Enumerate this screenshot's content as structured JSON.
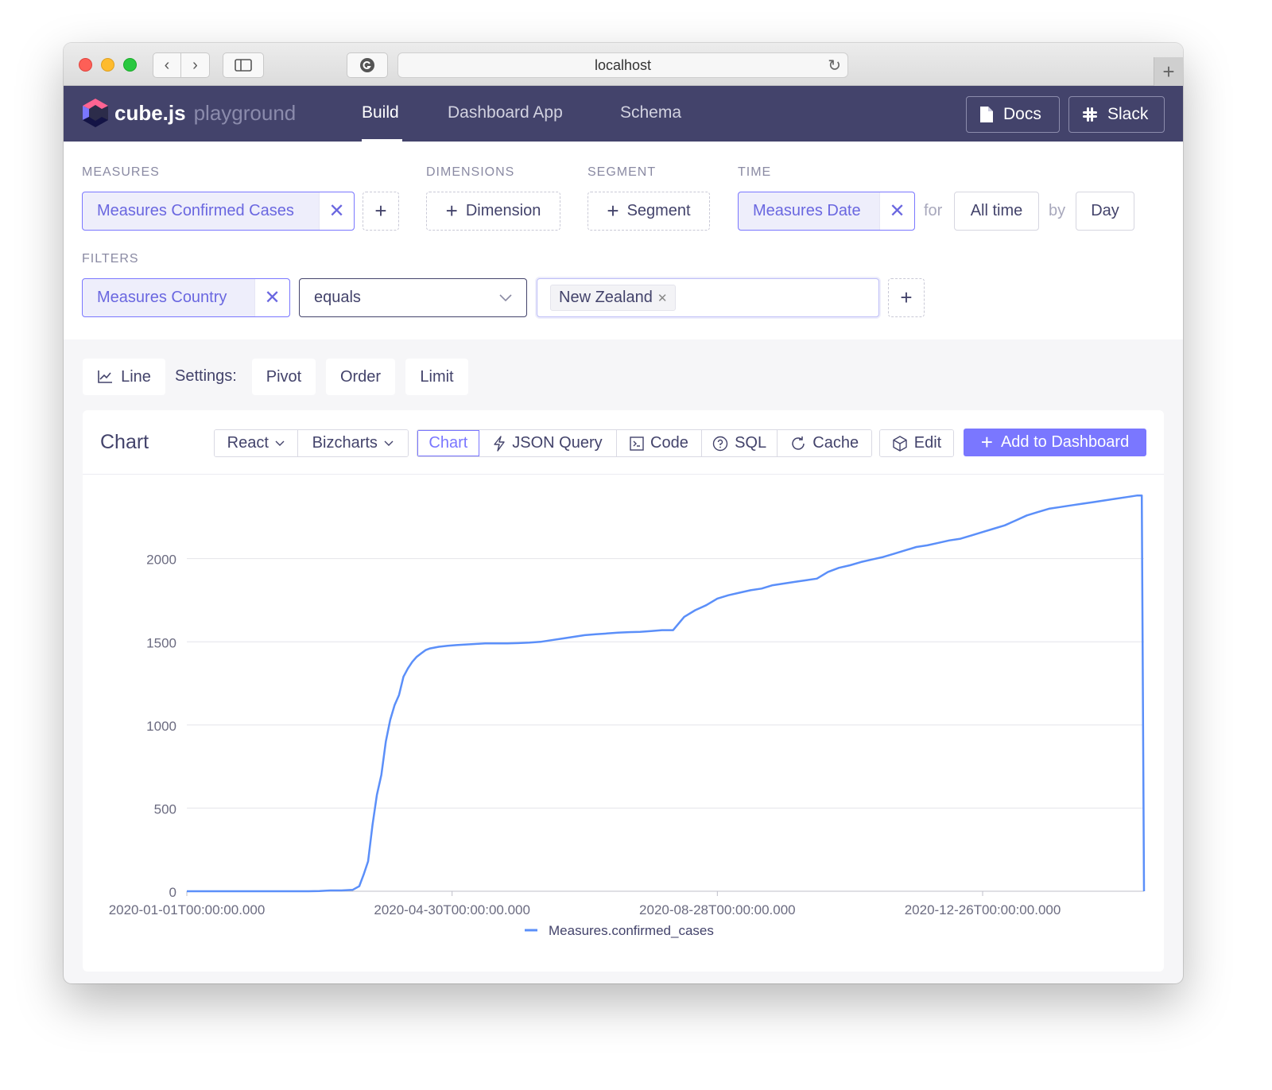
{
  "browser": {
    "url": "localhost"
  },
  "header": {
    "brand": "cube.js",
    "brand_sub": "playground",
    "nav": [
      {
        "label": "Build",
        "active": true
      },
      {
        "label": "Dashboard App",
        "active": false
      },
      {
        "label": "Schema",
        "active": false
      }
    ],
    "docs_label": "Docs",
    "slack_label": "Slack"
  },
  "builder": {
    "measures_label": "MEASURES",
    "measure_value": "Measures Confirmed Cases",
    "dimensions_label": "DIMENSIONS",
    "dimension_button": "Dimension",
    "segment_label": "SEGMENT",
    "segment_button": "Segment",
    "time_label": "TIME",
    "time_value": "Measures Date",
    "for_label": "for",
    "range_value": "All time",
    "by_label": "by",
    "granularity_value": "Day",
    "filters_label": "FILTERS",
    "filter_member": "Measures Country",
    "filter_operator": "equals",
    "filter_value": "New Zealand"
  },
  "settings": {
    "chart_type": "Line",
    "settings_label": "Settings:",
    "pivot": "Pivot",
    "order": "Order",
    "limit": "Limit"
  },
  "card": {
    "title": "Chart",
    "framework": "React",
    "library": "Bizcharts",
    "tabs": [
      "Chart",
      "JSON Query",
      "Code",
      "SQL",
      "Cache"
    ],
    "edit": "Edit",
    "add_to_dashboard": "Add to Dashboard"
  },
  "colors": {
    "header_bg": "#43436b",
    "accent": "#7a77ff",
    "line": "#5b8ff9"
  },
  "chart_data": {
    "type": "line",
    "x_tick_labels": [
      "2020-01-01T00:00:00.000",
      "2020-04-30T00:00:00.000",
      "2020-08-28T00:00:00.000",
      "2020-12-26T00:00:00.000"
    ],
    "y_ticks": [
      0,
      500,
      1000,
      1500,
      2000
    ],
    "ylim": [
      0,
      2400
    ],
    "x_domain_days": [
      0,
      433
    ],
    "grid": true,
    "legend_position": "bottom",
    "series": [
      {
        "name": "Measures.confirmed_cases",
        "x_days": [
          0,
          30,
          55,
          60,
          65,
          70,
          75,
          78,
          80,
          82,
          84,
          86,
          88,
          90,
          92,
          94,
          96,
          98,
          100,
          102,
          104,
          106,
          108,
          110,
          114,
          118,
          122,
          128,
          135,
          140,
          145,
          150,
          155,
          160,
          165,
          170,
          175,
          180,
          185,
          190,
          195,
          200,
          205,
          210,
          215,
          220,
          225,
          230,
          235,
          240,
          245,
          250,
          255,
          260,
          265,
          270,
          275,
          280,
          285,
          290,
          295,
          300,
          305,
          310,
          315,
          320,
          325,
          330,
          335,
          340,
          345,
          350,
          355,
          360,
          365,
          370,
          375,
          380,
          385,
          390,
          395,
          400,
          405,
          410,
          415,
          420,
          425,
          430,
          432,
          433
        ],
        "y": [
          0,
          0,
          0,
          1,
          5,
          5,
          8,
          30,
          100,
          180,
          400,
          580,
          700,
          900,
          1030,
          1120,
          1180,
          1290,
          1340,
          1380,
          1410,
          1430,
          1450,
          1460,
          1470,
          1476,
          1480,
          1485,
          1490,
          1490,
          1490,
          1492,
          1495,
          1500,
          1510,
          1520,
          1530,
          1540,
          1545,
          1550,
          1555,
          1558,
          1560,
          1565,
          1570,
          1570,
          1650,
          1690,
          1720,
          1760,
          1780,
          1795,
          1810,
          1820,
          1840,
          1850,
          1860,
          1870,
          1880,
          1920,
          1945,
          1960,
          1980,
          1995,
          2010,
          2030,
          2050,
          2070,
          2080,
          2095,
          2110,
          2120,
          2140,
          2160,
          2180,
          2200,
          2230,
          2260,
          2280,
          2300,
          2310,
          2320,
          2330,
          2340,
          2350,
          2360,
          2370,
          2380,
          2380,
          0
        ]
      }
    ]
  }
}
